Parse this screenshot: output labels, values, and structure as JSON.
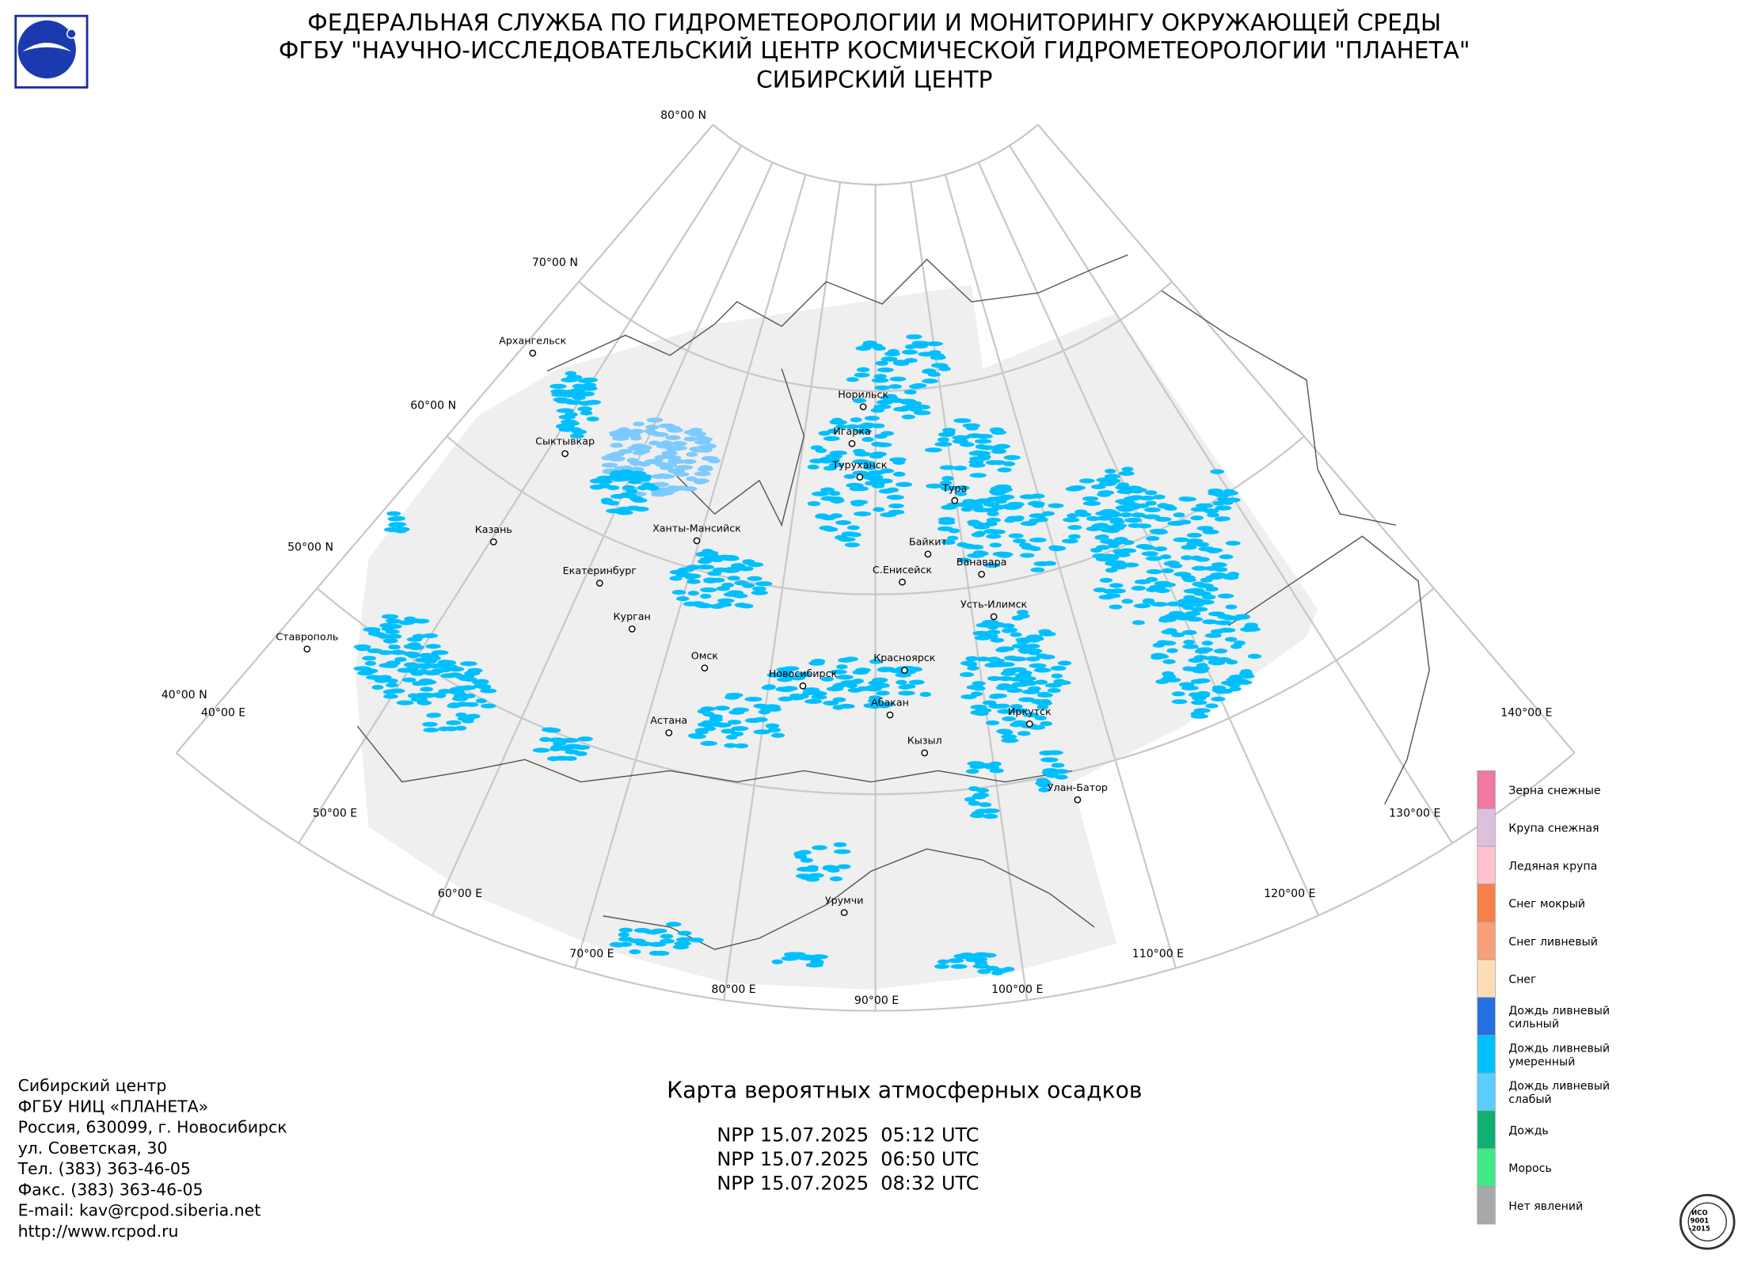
{
  "header": {
    "lines": [
      "ФЕДЕРАЛЬНАЯ СЛУЖБА ПО ГИДРОМЕТЕОРОЛОГИИ И МОНИТОРИНГУ ОКРУЖАЮЩЕЙ СРЕДЫ",
      "ФГБУ \"НАУЧНО-ИССЛЕДОВАТЕЛЬСКИЙ ЦЕНТР КОСМИЧЕСКОЙ ГИДРОМЕТЕОРОЛОГИИ \"ПЛАНЕТА\"",
      "СИБИРСКИЙ ЦЕНТР"
    ]
  },
  "grid_labels": [
    "80°00 N",
    "70°00 N",
    "60°00 N",
    "50°00 N",
    "40°00 N",
    "40°00 E",
    "50°00 E",
    "60°00 E",
    "70°00 E",
    "80°00 E",
    "90°00 E",
    "100°00 E",
    "110°00 E",
    "120°00 E",
    "130°00 E",
    "140°00 E"
  ],
  "cities": [
    "Архангельск",
    "Сыктывкар",
    "Казань",
    "Ставрополь",
    "Екатеринбург",
    "Курган",
    "Ханты-Мансийск",
    "Омск",
    "Астана",
    "Новосибирск",
    "Норильск",
    "Игарка",
    "Туруханск",
    "Тура",
    "Байкит",
    "Ванавара",
    "С.Енисейск",
    "Усть-Илимск",
    "Красноярск",
    "Абакан",
    "Кызыл",
    "Иркутск",
    "Улан-Батор",
    "Урумчи"
  ],
  "legend": [
    {
      "label": [
        "Зерна снежные"
      ],
      "color": "#f07aa0"
    },
    {
      "label": [
        "Крупа снежная"
      ],
      "color": "#dcc0dc"
    },
    {
      "label": [
        "Ледяная крупа"
      ],
      "color": "#ffc0d0"
    },
    {
      "label": [
        "Снег мокрый"
      ],
      "color": "#f7804a"
    },
    {
      "label": [
        "Снег ливневый"
      ],
      "color": "#f7a07a"
    },
    {
      "label": [
        "Снег"
      ],
      "color": "#fddcb8"
    },
    {
      "label": [
        "Дождь ливневый",
        "сильный"
      ],
      "color": "#2470e0"
    },
    {
      "label": [
        "Дождь ливневый",
        "умеренный"
      ],
      "color": "#00bfff"
    },
    {
      "label": [
        "Дождь ливневый",
        "слабый"
      ],
      "color": "#5acdff"
    },
    {
      "label": [
        "Дождь"
      ],
      "color": "#10b070"
    },
    {
      "label": [
        "Морось"
      ],
      "color": "#40e888"
    },
    {
      "label": [
        "Нет явлений"
      ],
      "color": "#a8a8a8"
    }
  ],
  "footer": {
    "address": [
      "Сибирский центр",
      "ФГБУ НИЦ «ПЛАНЕТА»",
      "Россия, 630099, г. Новосибирск",
      "ул. Советская, 30",
      "Тел. (383) 363-46-05",
      "Факс. (383) 363-46-05",
      "E-mail: kav@rcpod.siberia.net",
      "http://www.rcpod.ru"
    ]
  },
  "map_title": "Карта вероятных атмосферных осадков",
  "passes": [
    "NPP 15.07.2025  05:12 UTC",
    "NPP 15.07.2025  06:50 UTC",
    "NPP 15.07.2025  08:32 UTC"
  ],
  "iso_logo": [
    "ИСО",
    "9001",
    "-2015"
  ]
}
